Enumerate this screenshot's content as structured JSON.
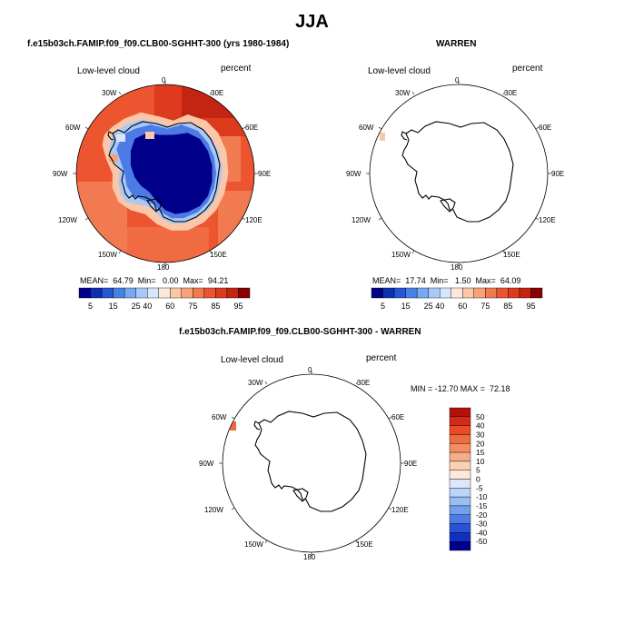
{
  "title": "JJA",
  "panels": [
    {
      "id": "model",
      "title": "f.e15b03ch.FAMIP.f09_f09.CLB00-SGHHT-300 (yrs 1980-1984)",
      "variable": "Low-level cloud",
      "units": "percent",
      "stats": "MEAN=  64.79  Min=   0.00  Max=  94.21",
      "colorbar": {
        "colors": [
          "#00008b",
          "#0c2fb4",
          "#2456d6",
          "#4682e6",
          "#78a8f2",
          "#a7c8f8",
          "#d6e6fb",
          "#fde9d9",
          "#fbc7a8",
          "#f7a27a",
          "#f27a50",
          "#ec5530",
          "#dd3a1e",
          "#c42512",
          "#8b0000"
        ],
        "tick_labels": [
          "5",
          "15",
          "25",
          "40",
          "60",
          "75",
          "85",
          "95"
        ]
      }
    },
    {
      "id": "obs",
      "title": "WARREN",
      "variable": "Low-level cloud",
      "units": "percent",
      "stats": "MEAN=  17.74  Min=   1.50  Max=  64.09",
      "colorbar": {
        "colors": [
          "#00008b",
          "#0c2fb4",
          "#2456d6",
          "#4682e6",
          "#78a8f2",
          "#a7c8f8",
          "#d6e6fb",
          "#fde9d9",
          "#fbc7a8",
          "#f7a27a",
          "#f27a50",
          "#ec5530",
          "#dd3a1e",
          "#c42512",
          "#8b0000"
        ],
        "tick_labels": [
          "5",
          "15",
          "25",
          "40",
          "60",
          "75",
          "85",
          "95"
        ]
      }
    },
    {
      "id": "diff",
      "title": "f.e15b03ch.FAMIP.f09_f09.CLB00-SGHHT-300 - WARREN",
      "variable": "Low-level cloud",
      "units": "percent",
      "stats": "MIN = -12.70 MAX =  72.18",
      "colorbar": {
        "colors": [
          "#b2120a",
          "#d52a16",
          "#ea4a26",
          "#f06b40",
          "#f58d62",
          "#f7ae88",
          "#fbd0b4",
          "#fde9dc",
          "#dce8fa",
          "#bcd4f7",
          "#9abdf2",
          "#759fec",
          "#4d7be6",
          "#2a52d8",
          "#1230c0",
          "#00008b"
        ],
        "tick_labels": [
          "50",
          "40",
          "30",
          "20",
          "15",
          "10",
          "5",
          "0",
          "-5",
          "-10",
          "-15",
          "-20",
          "-30",
          "-40",
          "-50"
        ]
      }
    }
  ],
  "longitude_labels": [
    "0",
    "30E",
    "60E",
    "90E",
    "120E",
    "150E",
    "180",
    "150W",
    "120W",
    "90W",
    "60W",
    "30W"
  ]
}
